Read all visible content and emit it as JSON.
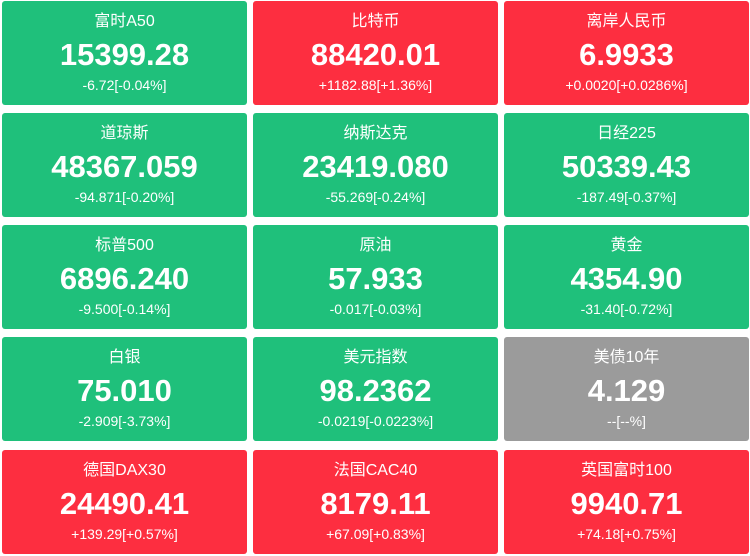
{
  "tiles": [
    {
      "name": "富时A50",
      "price": "15399.28",
      "change": "-6.72[-0.04%]",
      "color": "#1fc07b"
    },
    {
      "name": "比特币",
      "price": "88420.01",
      "change": "+1182.88[+1.36%]",
      "color": "#fd2e40"
    },
    {
      "name": "离岸人民币",
      "price": "6.9933",
      "change": "+0.0020[+0.0286%]",
      "color": "#fd2e40"
    },
    {
      "name": "道琼斯",
      "price": "48367.059",
      "change": "-94.871[-0.20%]",
      "color": "#1fc07b"
    },
    {
      "name": "纳斯达克",
      "price": "23419.080",
      "change": "-55.269[-0.24%]",
      "color": "#1fc07b"
    },
    {
      "name": "日经225",
      "price": "50339.43",
      "change": "-187.49[-0.37%]",
      "color": "#1fc07b"
    },
    {
      "name": "标普500",
      "price": "6896.240",
      "change": "-9.500[-0.14%]",
      "color": "#1fc07b"
    },
    {
      "name": "原油",
      "price": "57.933",
      "change": "-0.017[-0.03%]",
      "color": "#1fc07b"
    },
    {
      "name": "黄金",
      "price": "4354.90",
      "change": "-31.40[-0.72%]",
      "color": "#1fc07b"
    },
    {
      "name": "白银",
      "price": "75.010",
      "change": "-2.909[-3.73%]",
      "color": "#1fc07b"
    },
    {
      "name": "美元指数",
      "price": "98.2362",
      "change": "-0.0219[-0.0223%]",
      "color": "#1fc07b"
    },
    {
      "name": "美债10年",
      "price": "4.129",
      "change": "--[--%]",
      "color": "#9b9b9b"
    },
    {
      "name": "德国DAX30",
      "price": "24490.41",
      "change": "+139.29[+0.57%]",
      "color": "#fd2e40"
    },
    {
      "name": "法国CAC40",
      "price": "8179.11",
      "change": "+67.09[+0.83%]",
      "color": "#fd2e40"
    },
    {
      "name": "英国富时100",
      "price": "9940.71",
      "change": "+74.18[+0.75%]",
      "color": "#fd2e40"
    }
  ]
}
